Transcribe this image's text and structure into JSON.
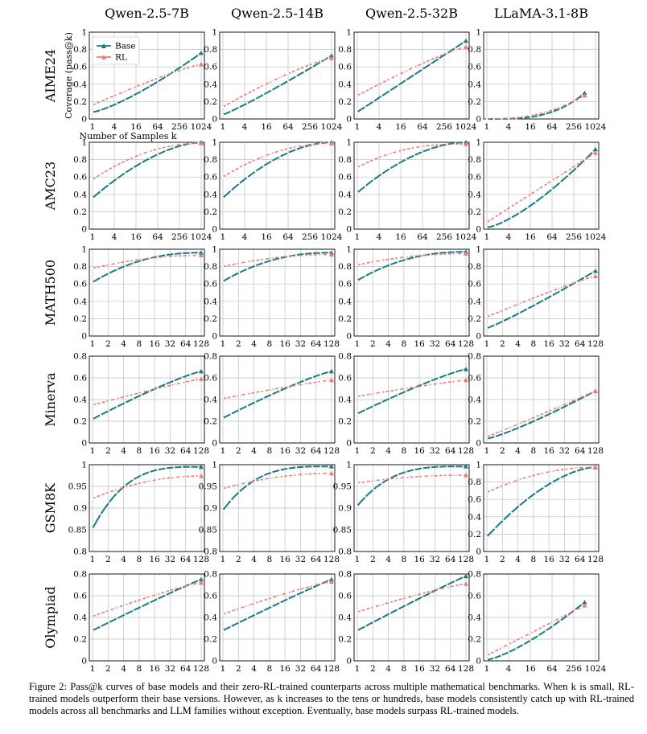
{
  "figure": {
    "model_titles": [
      "Qwen-2.5-7B",
      "Qwen-2.5-14B",
      "Qwen-2.5-32B",
      "LLaMA-3.1-8B"
    ],
    "row_labels": [
      "AIME24",
      "AMC23",
      "MATH500",
      "Minerva",
      "GSM8K",
      "Olympiad"
    ],
    "xlabel": "Number of Samples k",
    "ylabel": "Coverage (pass@k)",
    "colors": {
      "base": "#1a7a80",
      "rl": "#f07878",
      "grid": "#bfbfbf"
    },
    "legend": [
      "Base",
      "RL"
    ],
    "caption": "Figure 2: Pass@k curves of base models and their zero-RL-trained counterparts across multiple mathematical benchmarks. When k is small, RL-trained models outperform their base versions. However, as k increases to the tens or hundreds, base models consistently catch up with RL-trained models across all benchmarks and LLM families without exception. Eventually, base models surpass RL-trained models."
  },
  "chart_data": [
    {
      "type": "line",
      "row": "AIME24",
      "model": "Qwen-2.5-7B",
      "x_ticks": [
        "1",
        "4",
        "16",
        "64",
        "256",
        "1024"
      ],
      "kmax": 1024,
      "ylim": [
        0,
        1
      ],
      "y_ticks": [
        "0",
        "0.2",
        "0.4",
        "0.6",
        "0.8",
        "1"
      ],
      "series": [
        {
          "name": "Base",
          "start": 0.08,
          "end": 0.76,
          "shape": 1.3
        },
        {
          "name": "RL",
          "start": 0.16,
          "end": 0.63,
          "shape": 0.85
        }
      ]
    },
    {
      "type": "line",
      "row": "AIME24",
      "model": "Qwen-2.5-14B",
      "x_ticks": [
        "1",
        "4",
        "16",
        "64",
        "256",
        "1024"
      ],
      "kmax": 1024,
      "ylim": [
        0,
        1
      ],
      "y_ticks": [
        "0",
        "0.2",
        "0.4",
        "0.6",
        "0.8",
        "1"
      ],
      "series": [
        {
          "name": "Base",
          "start": 0.05,
          "end": 0.73,
          "shape": 1.1
        },
        {
          "name": "RL",
          "start": 0.14,
          "end": 0.7,
          "shape": 0.8
        }
      ]
    },
    {
      "type": "line",
      "row": "AIME24",
      "model": "Qwen-2.5-32B",
      "x_ticks": [
        "1",
        "4",
        "16",
        "64",
        "256",
        "1024"
      ],
      "kmax": 1024,
      "ylim": [
        0,
        1
      ],
      "y_ticks": [
        "0",
        "0.2",
        "0.4",
        "0.6",
        "0.8",
        "1"
      ],
      "series": [
        {
          "name": "Base",
          "start": 0.08,
          "end": 0.9,
          "shape": 1.0
        },
        {
          "name": "RL",
          "start": 0.27,
          "end": 0.83,
          "shape": 0.85
        }
      ]
    },
    {
      "type": "line",
      "row": "AIME24",
      "model": "LLaMA-3.1-8B",
      "x_ticks": [
        "1",
        "4",
        "16",
        "64",
        "256",
        "1024"
      ],
      "kmax": 512,
      "ylim": [
        0,
        1
      ],
      "y_ticks": [
        "0",
        "0.2",
        "0.4",
        "0.6",
        "0.8",
        "1"
      ],
      "series": [
        {
          "name": "Base",
          "start": 0.0,
          "end": 0.3,
          "shape": 3.2
        },
        {
          "name": "RL",
          "start": 0.0,
          "end": 0.27,
          "shape": 2.4
        }
      ]
    },
    {
      "type": "line",
      "row": "AMC23",
      "model": "Qwen-2.5-7B",
      "x_ticks": [
        "1",
        "4",
        "16",
        "64",
        "256",
        "1024"
      ],
      "kmax": 1024,
      "ylim": [
        0,
        1
      ],
      "y_ticks": [
        "0",
        "0.2",
        "0.4",
        "0.6",
        "0.8",
        "1"
      ],
      "series": [
        {
          "name": "Base",
          "start": 0.36,
          "end": 1.0,
          "shape": 0.6
        },
        {
          "name": "RL",
          "start": 0.57,
          "end": 0.99,
          "shape": 0.5
        }
      ]
    },
    {
      "type": "line",
      "row": "AMC23",
      "model": "Qwen-2.5-14B",
      "x_ticks": [
        "1",
        "4",
        "16",
        "64",
        "256",
        "1024"
      ],
      "kmax": 1024,
      "ylim": [
        0,
        1
      ],
      "y_ticks": [
        "0",
        "0.2",
        "0.4",
        "0.6",
        "0.8",
        "1"
      ],
      "series": [
        {
          "name": "Base",
          "start": 0.36,
          "end": 1.0,
          "shape": 0.55
        },
        {
          "name": "RL",
          "start": 0.6,
          "end": 0.99,
          "shape": 0.5
        }
      ]
    },
    {
      "type": "line",
      "row": "AMC23",
      "model": "Qwen-2.5-32B",
      "x_ticks": [
        "1",
        "4",
        "16",
        "64",
        "256",
        "1024"
      ],
      "kmax": 1024,
      "ylim": [
        0,
        1
      ],
      "y_ticks": [
        "0",
        "0.2",
        "0.4",
        "0.6",
        "0.8",
        "1"
      ],
      "series": [
        {
          "name": "Base",
          "start": 0.42,
          "end": 1.0,
          "shape": 0.55
        },
        {
          "name": "RL",
          "start": 0.71,
          "end": 0.98,
          "shape": 0.4
        }
      ]
    },
    {
      "type": "line",
      "row": "AMC23",
      "model": "LLaMA-3.1-8B",
      "x_ticks": [
        "1",
        "4",
        "16",
        "64",
        "256",
        "1024"
      ],
      "kmax": 1024,
      "ylim": [
        0,
        1
      ],
      "y_ticks": [
        "0",
        "0.2",
        "0.4",
        "0.6",
        "0.8",
        "1"
      ],
      "series": [
        {
          "name": "Base",
          "start": 0.02,
          "end": 0.92,
          "shape": 1.4
        },
        {
          "name": "RL",
          "start": 0.08,
          "end": 0.88,
          "shape": 1.0
        }
      ]
    },
    {
      "type": "line",
      "row": "MATH500",
      "model": "Qwen-2.5-7B",
      "x_ticks": [
        "1",
        "2",
        "4",
        "8",
        "16",
        "32",
        "64",
        "128"
      ],
      "kmax": 128,
      "ylim": [
        0,
        1
      ],
      "y_ticks": [
        "0",
        "0.2",
        "0.4",
        "0.6",
        "0.8",
        "1"
      ],
      "series": [
        {
          "name": "Base",
          "start": 0.62,
          "end": 0.96,
          "shape": 0.45
        },
        {
          "name": "RL",
          "start": 0.78,
          "end": 0.93,
          "shape": 0.5
        }
      ]
    },
    {
      "type": "line",
      "row": "MATH500",
      "model": "Qwen-2.5-14B",
      "x_ticks": [
        "1",
        "2",
        "4",
        "8",
        "16",
        "32",
        "64",
        "128"
      ],
      "kmax": 128,
      "ylim": [
        0,
        1
      ],
      "y_ticks": [
        "0",
        "0.2",
        "0.4",
        "0.6",
        "0.8",
        "1"
      ],
      "series": [
        {
          "name": "Base",
          "start": 0.63,
          "end": 0.96,
          "shape": 0.45
        },
        {
          "name": "RL",
          "start": 0.8,
          "end": 0.94,
          "shape": 0.5
        }
      ]
    },
    {
      "type": "line",
      "row": "MATH500",
      "model": "Qwen-2.5-32B",
      "x_ticks": [
        "1",
        "2",
        "4",
        "8",
        "16",
        "32",
        "64",
        "128"
      ],
      "kmax": 128,
      "ylim": [
        0,
        1
      ],
      "y_ticks": [
        "0",
        "0.2",
        "0.4",
        "0.6",
        "0.8",
        "1"
      ],
      "series": [
        {
          "name": "Base",
          "start": 0.64,
          "end": 0.97,
          "shape": 0.45
        },
        {
          "name": "RL",
          "start": 0.82,
          "end": 0.95,
          "shape": 0.5
        }
      ]
    },
    {
      "type": "line",
      "row": "MATH500",
      "model": "LLaMA-3.1-8B",
      "x_ticks": [
        "1",
        "2",
        "4",
        "8",
        "16",
        "32",
        "64",
        "128"
      ],
      "kmax": 128,
      "ylim": [
        0,
        1
      ],
      "y_ticks": [
        "0",
        "0.2",
        "0.4",
        "0.6",
        "0.8",
        "1"
      ],
      "series": [
        {
          "name": "Base",
          "start": 0.09,
          "end": 0.75,
          "shape": 1.1
        },
        {
          "name": "RL",
          "start": 0.22,
          "end": 0.69,
          "shape": 0.9
        }
      ]
    },
    {
      "type": "line",
      "row": "Minerva",
      "model": "Qwen-2.5-7B",
      "x_ticks": [
        "1",
        "2",
        "4",
        "8",
        "16",
        "32",
        "64",
        "128"
      ],
      "kmax": 128,
      "ylim": [
        0,
        0.8
      ],
      "y_ticks": [
        "0",
        "0.2",
        "0.4",
        "0.6",
        "0.8"
      ],
      "series": [
        {
          "name": "Base",
          "start": 0.22,
          "end": 0.66,
          "shape": 0.85
        },
        {
          "name": "RL",
          "start": 0.35,
          "end": 0.59,
          "shape": 0.9
        }
      ]
    },
    {
      "type": "line",
      "row": "Minerva",
      "model": "Qwen-2.5-14B",
      "x_ticks": [
        "1",
        "2",
        "4",
        "8",
        "16",
        "32",
        "64",
        "128"
      ],
      "kmax": 128,
      "ylim": [
        0,
        0.8
      ],
      "y_ticks": [
        "0",
        "0.2",
        "0.4",
        "0.6",
        "0.8"
      ],
      "series": [
        {
          "name": "Base",
          "start": 0.23,
          "end": 0.66,
          "shape": 0.85
        },
        {
          "name": "RL",
          "start": 0.41,
          "end": 0.58,
          "shape": 0.9
        }
      ]
    },
    {
      "type": "line",
      "row": "Minerva",
      "model": "Qwen-2.5-32B",
      "x_ticks": [
        "1",
        "2",
        "4",
        "8",
        "16",
        "32",
        "64",
        "128"
      ],
      "kmax": 128,
      "ylim": [
        0,
        0.8
      ],
      "y_ticks": [
        "0",
        "0.2",
        "0.4",
        "0.6",
        "0.8"
      ],
      "series": [
        {
          "name": "Base",
          "start": 0.27,
          "end": 0.68,
          "shape": 0.85
        },
        {
          "name": "RL",
          "start": 0.43,
          "end": 0.58,
          "shape": 0.9
        }
      ]
    },
    {
      "type": "line",
      "row": "Minerva",
      "model": "LLaMA-3.1-8B",
      "x_ticks": [
        "1",
        "2",
        "4",
        "8",
        "16",
        "32",
        "64",
        "128"
      ],
      "kmax": 128,
      "ylim": [
        0,
        0.8
      ],
      "y_ticks": [
        "0",
        "0.2",
        "0.4",
        "0.6",
        "0.8"
      ],
      "series": [
        {
          "name": "Base",
          "start": 0.04,
          "end": 0.48,
          "shape": 1.2
        },
        {
          "name": "RL",
          "start": 0.06,
          "end": 0.48,
          "shape": 1.05
        }
      ]
    },
    {
      "type": "line",
      "row": "GSM8K",
      "model": "Qwen-2.5-7B",
      "x_ticks": [
        "1",
        "2",
        "4",
        "8",
        "16",
        "32",
        "64",
        "128"
      ],
      "kmax": 128,
      "ylim": [
        0.8,
        1.0
      ],
      "y_ticks": [
        "0.8",
        "0.85",
        "0.9",
        "0.95",
        "1"
      ],
      "series": [
        {
          "name": "Base",
          "start": 0.853,
          "end": 0.995,
          "shape": 0.3
        },
        {
          "name": "RL",
          "start": 0.922,
          "end": 0.974,
          "shape": 0.5
        }
      ]
    },
    {
      "type": "line",
      "row": "GSM8K",
      "model": "Qwen-2.5-14B",
      "x_ticks": [
        "1",
        "2",
        "4",
        "8",
        "16",
        "32",
        "64",
        "128"
      ],
      "kmax": 128,
      "ylim": [
        0.8,
        1.0
      ],
      "y_ticks": [
        "0.8",
        "0.85",
        "0.9",
        "0.95",
        "1"
      ],
      "series": [
        {
          "name": "Base",
          "start": 0.895,
          "end": 0.996,
          "shape": 0.3
        },
        {
          "name": "RL",
          "start": 0.945,
          "end": 0.98,
          "shape": 0.5
        }
      ]
    },
    {
      "type": "line",
      "row": "GSM8K",
      "model": "Qwen-2.5-32B",
      "x_ticks": [
        "1",
        "2",
        "4",
        "8",
        "16",
        "32",
        "64",
        "128"
      ],
      "kmax": 128,
      "ylim": [
        0.8,
        1.0
      ],
      "y_ticks": [
        "0.8",
        "0.85",
        "0.9",
        "0.95",
        "1"
      ],
      "series": [
        {
          "name": "Base",
          "start": 0.905,
          "end": 0.996,
          "shape": 0.3
        },
        {
          "name": "RL",
          "start": 0.958,
          "end": 0.976,
          "shape": 0.5
        }
      ]
    },
    {
      "type": "line",
      "row": "GSM8K",
      "model": "LLaMA-3.1-8B",
      "x_ticks": [
        "1",
        "2",
        "4",
        "8",
        "16",
        "32",
        "64",
        "128"
      ],
      "kmax": 128,
      "ylim": [
        0,
        1
      ],
      "y_ticks": [
        "0",
        "0.2",
        "0.4",
        "0.6",
        "0.8",
        "1"
      ],
      "series": [
        {
          "name": "Base",
          "start": 0.17,
          "end": 0.97,
          "shape": 0.6
        },
        {
          "name": "RL",
          "start": 0.68,
          "end": 0.97,
          "shape": 0.5
        }
      ]
    },
    {
      "type": "line",
      "row": "Olympiad",
      "model": "Qwen-2.5-7B",
      "x_ticks": [
        "1",
        "2",
        "4",
        "8",
        "16",
        "32",
        "64",
        "128"
      ],
      "kmax": 128,
      "ylim": [
        0,
        0.8
      ],
      "y_ticks": [
        "0",
        "0.2",
        "0.4",
        "0.6",
        "0.8"
      ],
      "series": [
        {
          "name": "Base",
          "start": 0.28,
          "end": 0.75,
          "shape": 0.95
        },
        {
          "name": "RL",
          "start": 0.41,
          "end": 0.72,
          "shape": 0.85
        }
      ]
    },
    {
      "type": "line",
      "row": "Olympiad",
      "model": "Qwen-2.5-14B",
      "x_ticks": [
        "1",
        "2",
        "4",
        "8",
        "16",
        "32",
        "64",
        "128"
      ],
      "kmax": 128,
      "ylim": [
        0,
        0.8
      ],
      "y_ticks": [
        "0",
        "0.2",
        "0.4",
        "0.6",
        "0.8"
      ],
      "series": [
        {
          "name": "Base",
          "start": 0.28,
          "end": 0.75,
          "shape": 0.95
        },
        {
          "name": "RL",
          "start": 0.43,
          "end": 0.73,
          "shape": 0.85
        }
      ]
    },
    {
      "type": "line",
      "row": "Olympiad",
      "model": "Qwen-2.5-32B",
      "x_ticks": [
        "1",
        "2",
        "4",
        "8",
        "16",
        "32",
        "64",
        "128"
      ],
      "kmax": 128,
      "ylim": [
        0,
        0.8
      ],
      "y_ticks": [
        "0",
        "0.2",
        "0.4",
        "0.6",
        "0.8"
      ],
      "series": [
        {
          "name": "Base",
          "start": 0.28,
          "end": 0.78,
          "shape": 0.95
        },
        {
          "name": "RL",
          "start": 0.45,
          "end": 0.71,
          "shape": 0.85
        }
      ]
    },
    {
      "type": "line",
      "row": "Olympiad",
      "model": "LLaMA-3.1-8B",
      "x_ticks": [
        "1",
        "4",
        "16",
        "64",
        "256",
        "1024"
      ],
      "kmax": 512,
      "ylim": [
        0,
        0.8
      ],
      "y_ticks": [
        "0",
        "0.2",
        "0.4",
        "0.6",
        "0.8"
      ],
      "series": [
        {
          "name": "Base",
          "start": 0.01,
          "end": 0.54,
          "shape": 1.35
        },
        {
          "name": "RL",
          "start": 0.05,
          "end": 0.51,
          "shape": 1.0
        }
      ]
    }
  ]
}
